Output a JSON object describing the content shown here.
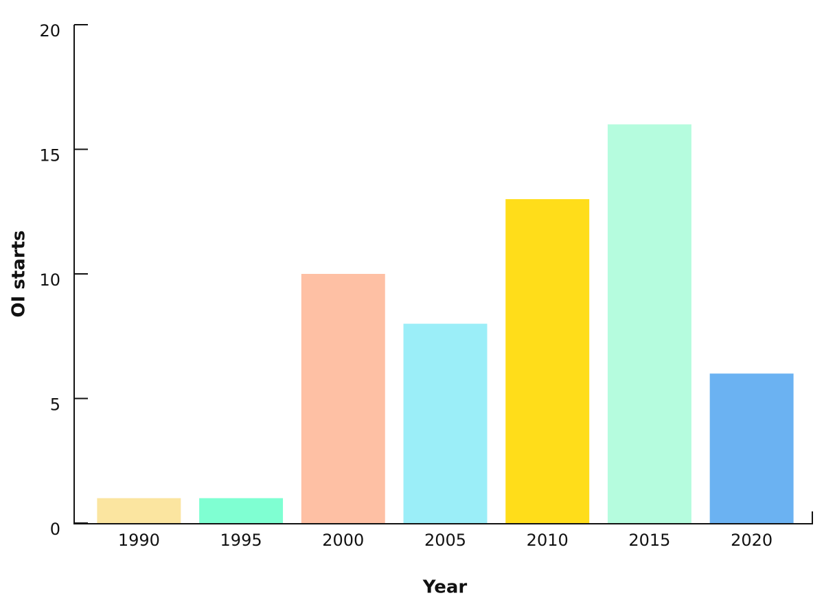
{
  "chart_data": {
    "type": "bar",
    "x_label": "Year",
    "y_label": "OI starts",
    "categories": [
      "1990",
      "1995",
      "2000",
      "2005",
      "2010",
      "2015",
      "2020"
    ],
    "values": [
      1,
      1,
      10,
      8,
      13,
      16,
      6
    ],
    "colors": [
      "#fbe5a0",
      "#7fffd2",
      "#fec0a4",
      "#9beef8",
      "#ffdd1a",
      "#b5fcde",
      "#6bb2f2"
    ],
    "ylim": [
      0,
      20
    ],
    "yticks": [
      0,
      5,
      10,
      15,
      20
    ],
    "grid": false
  }
}
